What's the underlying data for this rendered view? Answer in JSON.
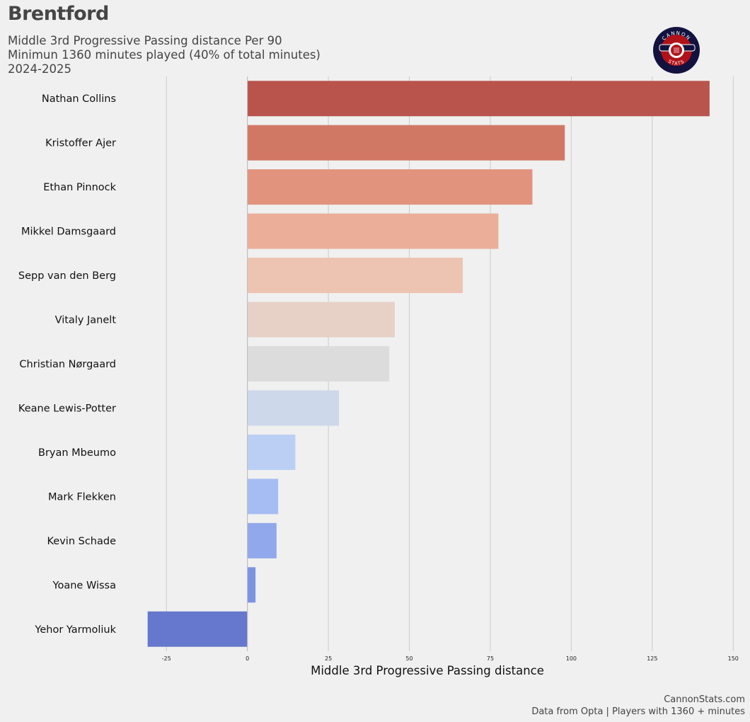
{
  "header": {
    "team": "Brentford",
    "subtitle_line1": "Middle 3rd Progressive Passing distance Per 90",
    "subtitle_line2": "Minimun 1360 minutes played (40% of total minutes)",
    "subtitle_line3": "2024-2025"
  },
  "logo": {
    "top_text": "CANNON",
    "bottom_text": "STATS",
    "colors": {
      "ring": "#13123f",
      "fill": "#b01218",
      "accent": "#ffffff"
    }
  },
  "footer": {
    "line1": "CannonStats.com",
    "line2": "Data from Opta | Players with 1360 + minutes"
  },
  "chart_data": {
    "type": "bar",
    "orientation": "horizontal",
    "title": "Middle 3rd Progressive Passing distance Per 90",
    "xlabel": "Middle 3rd Progressive Passing distance",
    "ylabel": "",
    "xlim": [
      -37.5,
      153
    ],
    "xticks": [
      -25,
      0,
      25,
      50,
      75,
      100,
      125,
      150
    ],
    "grid": "vertical",
    "categories": [
      "Nathan Collins",
      "Kristoffer Ajer",
      "Ethan Pinnock",
      "Mikkel Damsgaard",
      "Sepp van den Berg",
      "Vitaly Janelt",
      "Christian Nørgaard",
      "Keane Lewis-Potter",
      "Bryan Mbeumo",
      "Mark Flekken",
      "Kevin Schade",
      "Yoane Wissa",
      "Yehor Yarmoliuk"
    ],
    "values": [
      142.7,
      98.0,
      88.0,
      77.5,
      66.5,
      45.5,
      43.8,
      28.3,
      14.8,
      9.5,
      9.0,
      2.5,
      -30.8
    ],
    "colors": [
      "#b9544c",
      "#d17865",
      "#e1937d",
      "#eaae99",
      "#edc3b2",
      "#e7d1c7",
      "#dcdcdc",
      "#cdd8eb",
      "#bacff3",
      "#a6bdf3",
      "#92a8ec",
      "#7c93e2",
      "#6578cd"
    ]
  }
}
